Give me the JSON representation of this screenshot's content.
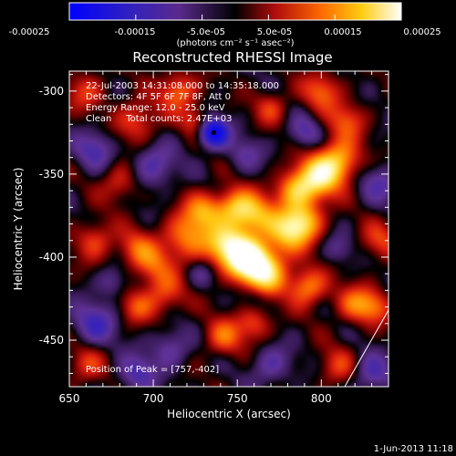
{
  "colorbar": {
    "ticks": [
      "-0.00025",
      "-0.00015",
      "-5.0e-05",
      "5.0e-05",
      "0.00015",
      "0.00025"
    ],
    "unit_label": "(photons cm⁻² s⁻¹ asec⁻²)",
    "colormap": "blue-purple-black-red-orange-yellow-white",
    "colors": [
      "#0000ff",
      "#4b1fa0",
      "#000000",
      "#c41010",
      "#ff7a00",
      "#ffd000",
      "#ffffff"
    ]
  },
  "chart_data": {
    "type": "heatmap",
    "title": "Reconstructed RHESSI Image",
    "xlabel": "Heliocentric X (arcsec)",
    "ylabel": "Heliocentric Y (arcsec)",
    "xlim": [
      650,
      840
    ],
    "ylim": [
      -478,
      -288
    ],
    "x_ticks": [
      650,
      700,
      750,
      800
    ],
    "y_ticks": [
      -300,
      -350,
      -400,
      -450
    ],
    "info_lines": [
      "22-Jul-2003 14:31:08.000 to 14:35:18.000",
      "Detectors: 4F 5F 6F 7F 8F, Att 0",
      "Energy Range: 12.0 - 25.0 keV",
      "Clean     Total counts: 2.47E+03"
    ],
    "peak_text": "Position of Peak = [757,-402]",
    "peak": [
      757,
      -402
    ],
    "minimum_marker": [
      736,
      -325
    ],
    "value_range": [
      -0.00025,
      0.00025
    ]
  },
  "footer": {
    "date": "1-Jun-2013 11:18"
  }
}
